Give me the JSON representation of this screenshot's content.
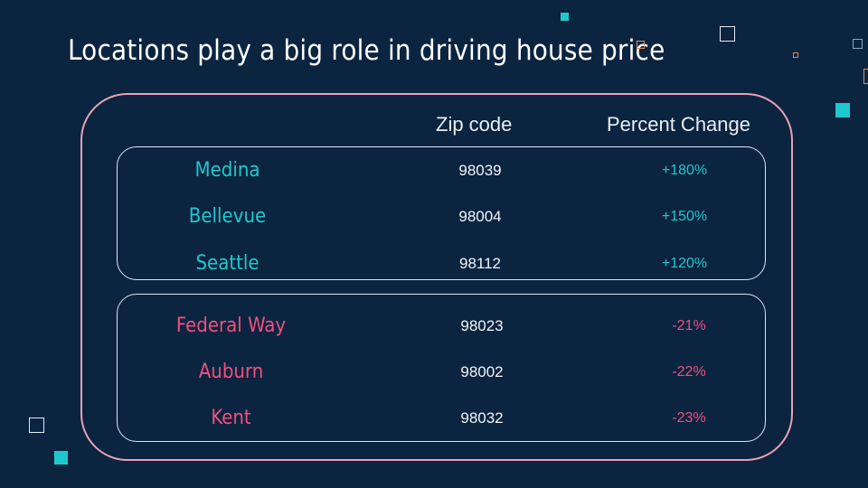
{
  "slide": {
    "title": "Locations play a big role in driving house price",
    "headers": {
      "zip": "Zip code",
      "percent": "Percent Change"
    },
    "top_group": [
      {
        "city": "Medina",
        "zip": "98039",
        "change": "+180%"
      },
      {
        "city": "Bellevue",
        "zip": "98004",
        "change": "+150%"
      },
      {
        "city": "Seattle",
        "zip": "98112",
        "change": "+120%"
      }
    ],
    "bottom_group": [
      {
        "city": "Federal Way",
        "zip": "98023",
        "change": "-21%"
      },
      {
        "city": "Auburn",
        "zip": "98002",
        "change": "-22%"
      },
      {
        "city": "Kent",
        "zip": "98032",
        "change": "-23%"
      }
    ]
  },
  "colors": {
    "background": "#0b2440",
    "positive": "#1fc8cc",
    "negative": "#f0507e",
    "frame": "#e8a2b3",
    "accent_orange": "#e08a5c"
  }
}
